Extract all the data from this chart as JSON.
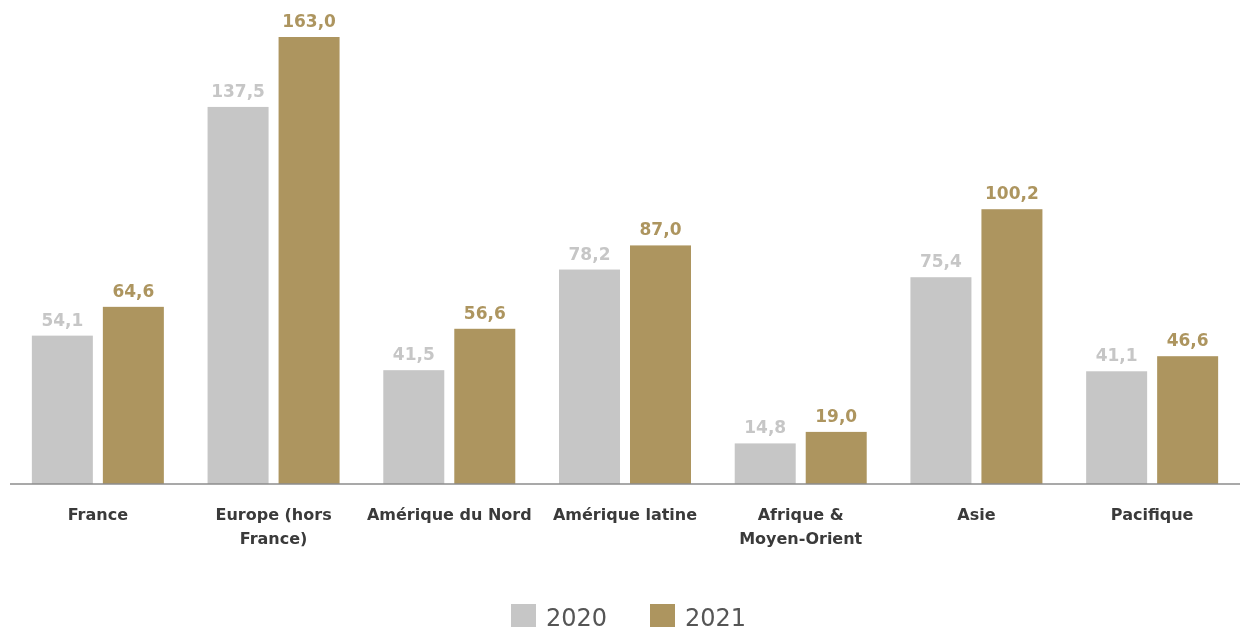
{
  "chart_data": {
    "type": "bar",
    "categories": [
      "France",
      "Europe (hors France)",
      "Amérique du Nord",
      "Amérique latine",
      "Afrique & Moyen-Orient",
      "Asie",
      "Pacifique"
    ],
    "series": [
      {
        "name": "2020",
        "color": "#c6c6c6",
        "values": [
          54.1,
          137.5,
          41.5,
          78.2,
          14.8,
          75.4,
          41.1
        ],
        "value_labels": [
          "54,1",
          "137,5",
          "41,5",
          "78,2",
          "14,8",
          "75,4",
          "41,1"
        ]
      },
      {
        "name": "2021",
        "color": "#ad955f",
        "values": [
          64.6,
          163.0,
          56.6,
          87.0,
          19.0,
          100.2,
          46.6
        ],
        "value_labels": [
          "64,6",
          "163,0",
          "56,6",
          "87,0",
          "19,0",
          "100,2",
          "46,6"
        ]
      }
    ],
    "legend": "bottom"
  }
}
